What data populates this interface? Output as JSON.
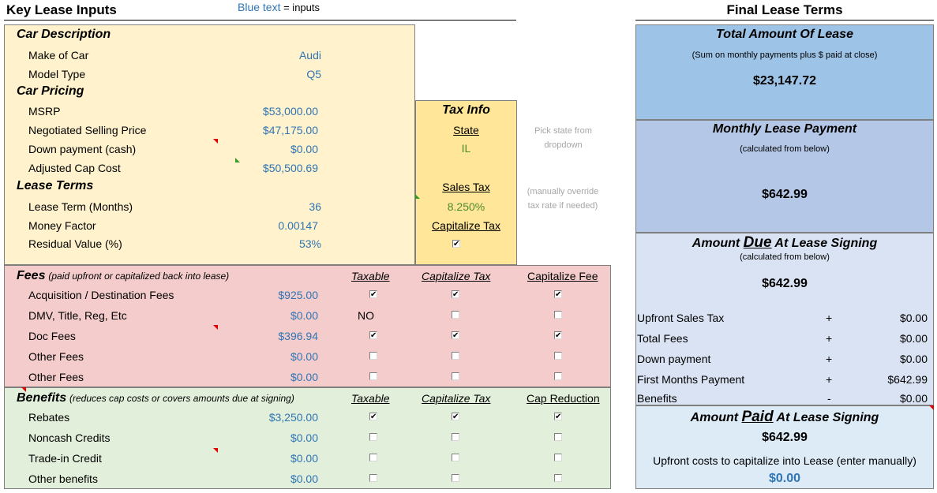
{
  "header": {
    "left_title": "Key Lease Inputs",
    "legend_blue": "Blue text",
    "legend_rest": " = inputs",
    "right_title": "Final Lease Terms"
  },
  "car": {
    "section": "Car Description",
    "make_label": "Make of Car",
    "make_value": "Audi",
    "model_label": "Model Type",
    "model_value": "Q5"
  },
  "pricing": {
    "section": "Car Pricing",
    "msrp_label": "MSRP",
    "msrp_value": "$53,000.00",
    "nsp_label": "Negotiated Selling Price",
    "nsp_value": "$47,175.00",
    "down_label": "Down payment (cash)",
    "down_value": "$0.00",
    "acc_label": "Adjusted Cap Cost",
    "acc_value": "$50,500.69"
  },
  "terms": {
    "section": "Lease Terms",
    "term_label": "Lease Term (Months)",
    "term_value": "36",
    "mf_label": "Money Factor",
    "mf_value": "0.00147",
    "rv_label": "Residual Value (%)",
    "rv_value": "53%"
  },
  "tax": {
    "title": "Tax Info",
    "state_label": "State",
    "state_value": "IL",
    "state_note_1": "Pick state from",
    "state_note_2": "dropdown",
    "sales_label": "Sales Tax",
    "sales_value": "8.250%",
    "sales_note_1": "(manually override",
    "sales_note_2": "tax rate if needed)",
    "cap_label": "Capitalize Tax",
    "cap_checked": true
  },
  "fees": {
    "section": "Fees",
    "section_note": "(paid upfront or capitalized back into lease)",
    "col_taxable": "Taxable",
    "col_cap_tax": "Capitalize Tax",
    "col_cap_fee": "Capitalize Fee",
    "rows": [
      {
        "label": "Acquisition / Destination Fees",
        "value": "$925.00",
        "taxable": "check",
        "cap_tax": true,
        "cap_fee": true
      },
      {
        "label": "DMV, Title, Reg, Etc",
        "value": "$0.00",
        "taxable": "NO",
        "cap_tax": false,
        "cap_fee": false
      },
      {
        "label": "Doc Fees",
        "value": "$396.94",
        "taxable": "check",
        "cap_tax": true,
        "cap_fee": true
      },
      {
        "label": "Other Fees",
        "value": "$0.00",
        "taxable": "empty",
        "cap_tax": false,
        "cap_fee": false
      },
      {
        "label": "Other Fees",
        "value": "$0.00",
        "taxable": "empty",
        "cap_tax": false,
        "cap_fee": false
      }
    ]
  },
  "benefits": {
    "section": "Benefits",
    "section_note": "(reduces cap costs or covers amounts due at signing)",
    "col_taxable": "Taxable",
    "col_cap_tax": "Capitalize Tax",
    "col_cap_red": "Cap Reduction",
    "rows": [
      {
        "label": "Rebates",
        "value": "$3,250.00",
        "taxable": true,
        "cap_tax": true,
        "cap_red": true
      },
      {
        "label": "Noncash Credits",
        "value": "$0.00",
        "taxable": false,
        "cap_tax": false,
        "cap_red": false
      },
      {
        "label": "Trade-in Credit",
        "value": "$0.00",
        "taxable": false,
        "cap_tax": false,
        "cap_red": false
      },
      {
        "label": "Other benefits",
        "value": "$0.00",
        "taxable": false,
        "cap_tax": false,
        "cap_red": false
      }
    ]
  },
  "final": {
    "total_title": "Total Amount Of Lease",
    "total_note": "(Sum on monthly payments plus $ paid at close)",
    "total_value": "$23,147.72",
    "monthly_title": "Monthly Lease Payment",
    "monthly_note": "(calculated from below)",
    "monthly_value": "$642.99",
    "due_pre": "Amount ",
    "due_big": "Due",
    "due_post": " At Lease Signing",
    "due_note": "(calculated from below)",
    "due_value": "$642.99",
    "breakdown": [
      {
        "label": "Upfront Sales Tax",
        "op": "+",
        "value": "$0.00"
      },
      {
        "label": "Total Fees",
        "op": "+",
        "value": "$0.00"
      },
      {
        "label": "Down payment",
        "op": "+",
        "value": "$0.00"
      },
      {
        "label": "First Months Payment",
        "op": "+",
        "value": "$642.99"
      },
      {
        "label": "Benefits",
        "op": "-",
        "value": "$0.00"
      }
    ],
    "paid_pre": "Amount ",
    "paid_big": "Paid",
    "paid_post": " At Lease Signing",
    "paid_value": "$642.99",
    "upfront_label": "Upfront costs to capitalize into Lease (enter manually)",
    "upfront_value": "$0.00"
  },
  "colors": {
    "input_blue": "#2f75b5",
    "yellow_panel": "#fff2cc",
    "tax_panel": "#ffe699",
    "fees_panel": "#f4cccc",
    "benefits_panel": "#e2efda",
    "total_panel": "#9dc3e6",
    "monthly_panel": "#b4c7e7",
    "due_panel": "#dae3f3",
    "paid_panel": "#ddebf7"
  }
}
